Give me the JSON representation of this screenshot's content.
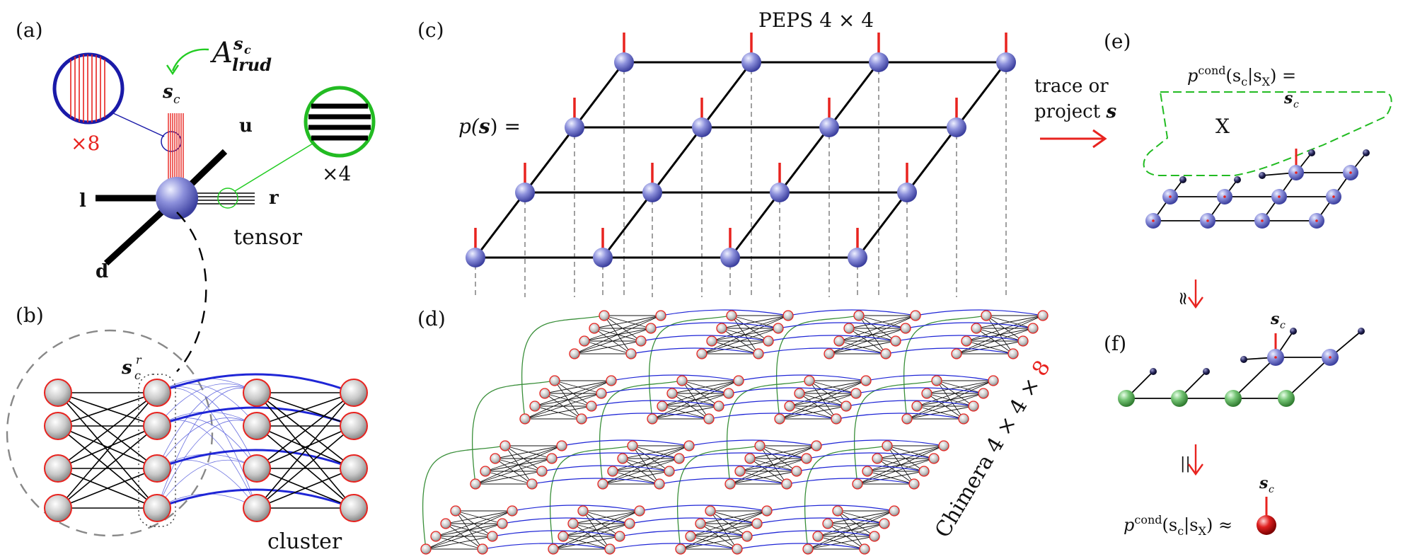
{
  "panels": {
    "a": {
      "label": "(a)",
      "tensor_symbol": "A",
      "tensor_sup": "s",
      "tensor_sup_sub": "c",
      "tensor_sub": "lrud",
      "phys_index": "s",
      "phys_index_sub": "c",
      "bond_u": "u",
      "bond_l": "l",
      "bond_r": "r",
      "bond_d": "d",
      "mult_phys": "×8",
      "mult_bond": "×4",
      "caption": "tensor"
    },
    "b": {
      "label": "(b)",
      "spin_symbol": "s",
      "spin_sup": "r",
      "spin_sub": "c",
      "caption": "cluster"
    },
    "c": {
      "label": "(c)",
      "title": "PEPS 4 × 4",
      "prob_lhs_1": "p(",
      "prob_lhs_s": "s",
      "prob_lhs_2": ") ="
    },
    "d": {
      "label": "(d)",
      "caption_prefix": "Chimera 4 × 4 × ",
      "caption_red": "8"
    },
    "arrow": {
      "line1": "trace or",
      "line2": "project ",
      "line2_s": "s"
    },
    "e": {
      "label": "(e)",
      "eq": "p",
      "eq_sup": "cond",
      "eq_args": "(s",
      "eq_c": "c",
      "eq_bar": "|s",
      "eq_x": "X",
      "eq_end": ") =",
      "phys_index": "s",
      "phys_index_sub": "c",
      "region": "X"
    },
    "approx1": "≈",
    "f": {
      "label": "(f)",
      "phys_index": "s",
      "phys_index_sub": "c"
    },
    "approx2": "||",
    "final": {
      "eq": "p",
      "eq_sup": "cond",
      "eq_args": "(s",
      "eq_c": "c",
      "eq_bar": "|s",
      "eq_x": "X",
      "eq_end": ") ≈",
      "phys_index": "s",
      "phys_index_sub": "c"
    }
  },
  "colors": {
    "node_blue": "#7a7fd6",
    "node_green": "#6fbf6f",
    "node_gray": "#bdbdbd",
    "leg_red": "#e8231f",
    "coupler_blue": "#1f26d6",
    "coupler_green": "#3a8f3a",
    "accent_green": "#22cc22",
    "dashed_green": "#22bb22"
  }
}
